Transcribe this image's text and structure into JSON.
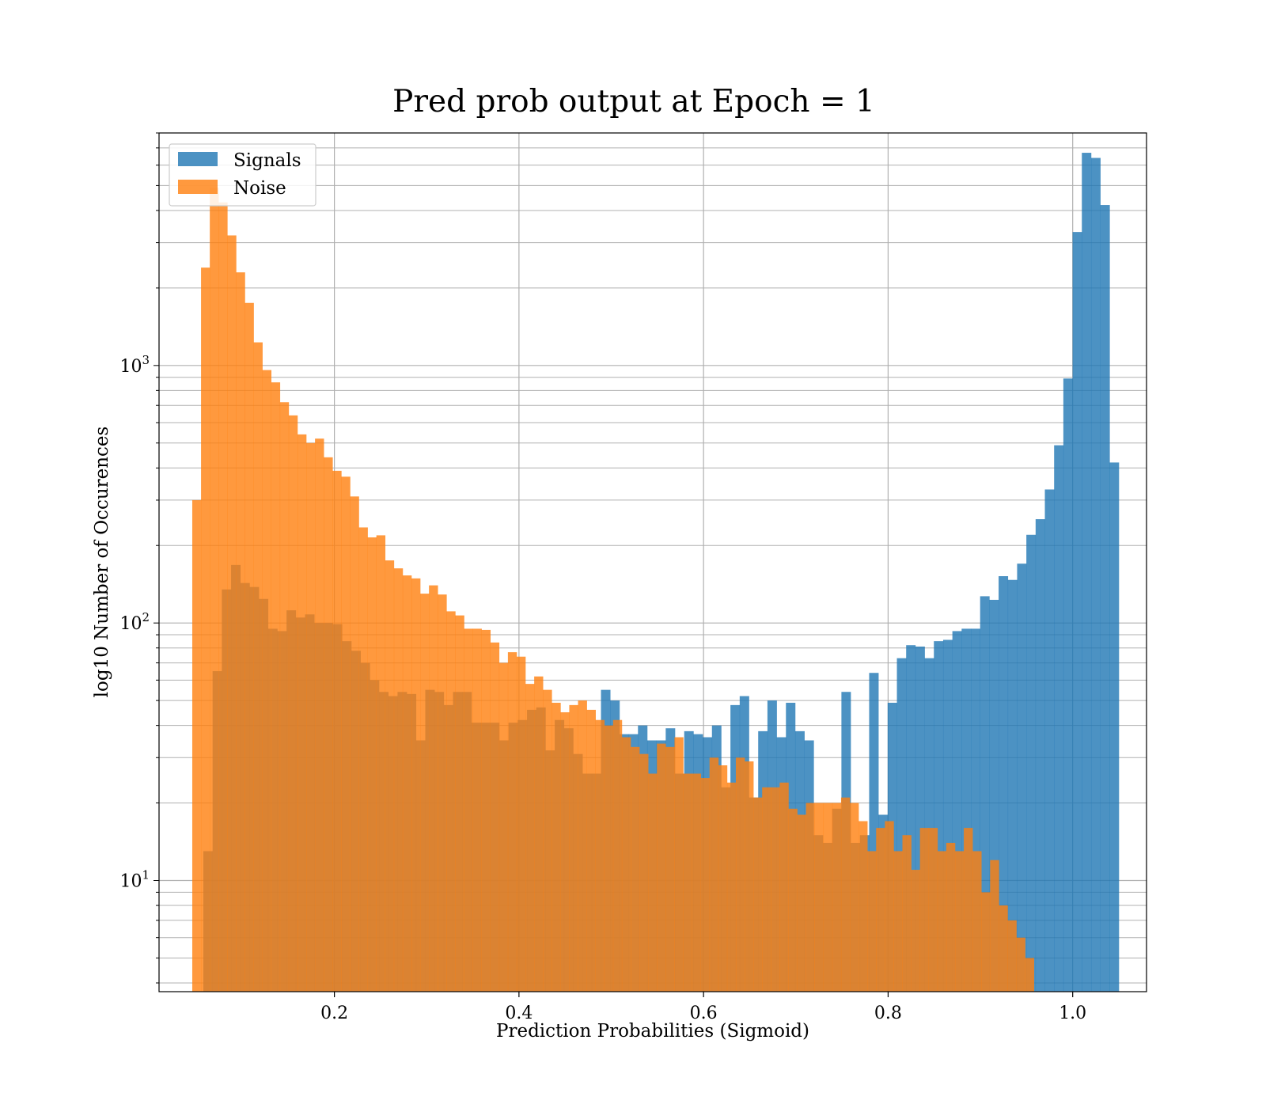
{
  "chart_data": {
    "type": "bar",
    "title": "Pred prob output at Epoch = 1",
    "xlabel": "Prediction Probabilities (Sigmoid)",
    "ylabel": "log10 Number of Occurences",
    "y_scale": "log",
    "grid": true,
    "grid_minor": true,
    "legend_position": "top-left",
    "xlim": [
      0.01,
      1.08
    ],
    "ylim": [
      3.7,
      8000
    ],
    "x_ticks": [
      {
        "value": 0.2,
        "label": "0.2"
      },
      {
        "value": 0.4,
        "label": "0.4"
      },
      {
        "value": 0.6,
        "label": "0.6"
      },
      {
        "value": 0.8,
        "label": "0.8"
      },
      {
        "value": 1.0,
        "label": "1.0"
      }
    ],
    "y_ticks": [
      {
        "value": 10,
        "base": "10",
        "exp": "1"
      },
      {
        "value": 100,
        "base": "10",
        "exp": "2"
      },
      {
        "value": 1000,
        "base": "10",
        "exp": "3"
      }
    ],
    "series": [
      {
        "name": "Signals",
        "color": "#1f77b4",
        "opacity": 0.8,
        "bin_start": 0.058,
        "bin_end": 1.05,
        "values": [
          13,
          65,
          135,
          168,
          143,
          138,
          124,
          95,
          93,
          112,
          105,
          108,
          100,
          100,
          99,
          85,
          78,
          70,
          60,
          54,
          52,
          54,
          53,
          35,
          55,
          54,
          48,
          54,
          54,
          41,
          41,
          41,
          35,
          41,
          42,
          46,
          47,
          32,
          42,
          39,
          31,
          26,
          26,
          55,
          50,
          37,
          37,
          40,
          35,
          35,
          39,
          26,
          38,
          37,
          36,
          40,
          23,
          48,
          52,
          21,
          38,
          50,
          36,
          49,
          38,
          35,
          15,
          14,
          19,
          54,
          14,
          15,
          64,
          18,
          49,
          73,
          82,
          81,
          73,
          85,
          86,
          93,
          95,
          95,
          127,
          123,
          152,
          147,
          170,
          220,
          253,
          330,
          490,
          890,
          3300,
          6700,
          6400,
          4200,
          420
        ]
      },
      {
        "name": "Noise",
        "color": "#ff7f0e",
        "opacity": 0.8,
        "bin_start": 0.046,
        "bin_end": 0.958,
        "values": [
          300,
          2400,
          4900,
          4300,
          3200,
          2300,
          1750,
          1230,
          960,
          860,
          720,
          640,
          540,
          500,
          520,
          440,
          390,
          370,
          310,
          235,
          215,
          219,
          175,
          163,
          153,
          149,
          130,
          140,
          129,
          111,
          107,
          95,
          95,
          94,
          84,
          70,
          77,
          74,
          58,
          62,
          55,
          49,
          45,
          48,
          50,
          46,
          42,
          40,
          42,
          36,
          33,
          31,
          26,
          34,
          33,
          36,
          26,
          26,
          25,
          30,
          28,
          24,
          30,
          29,
          21,
          23,
          23,
          24,
          19,
          18,
          20,
          20,
          20,
          20,
          21,
          20,
          17,
          13,
          16,
          17,
          13,
          15,
          11,
          16,
          16,
          13,
          14,
          13,
          16,
          13,
          9,
          12,
          8,
          7,
          6,
          5
        ]
      }
    ]
  }
}
